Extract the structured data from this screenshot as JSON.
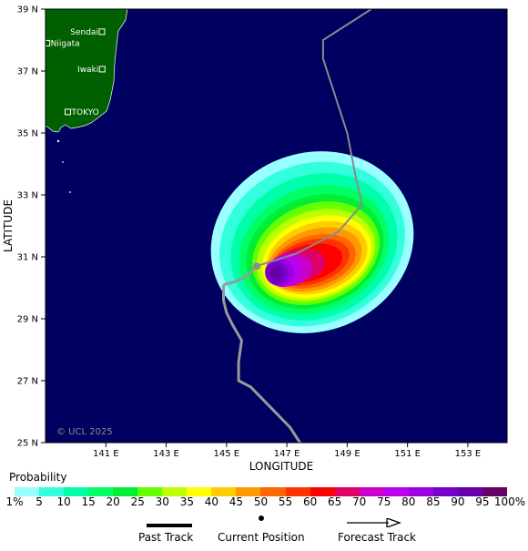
{
  "map": {
    "x_axis_title": "LONGITUDE",
    "y_axis_title": "LATITUDE",
    "lon_ticks": [
      "141 E",
      "143 E",
      "145 E",
      "147 E",
      "149 E",
      "151 E",
      "153 E"
    ],
    "lat_ticks": [
      "39 N",
      "37 N",
      "35 N",
      "33 N",
      "31 N",
      "29 N",
      "27 N",
      "25 N"
    ],
    "lon_range": [
      139,
      154.3
    ],
    "lat_range": [
      25,
      39
    ],
    "ocean_color": "#000060",
    "land_color": "#006000",
    "cities": [
      {
        "name": "Sendai",
        "lon": 140.87,
        "lat": 38.27
      },
      {
        "name": "Niigata",
        "lon": 139.05,
        "lat": 37.9
      },
      {
        "name": "Iwaki",
        "lon": 140.88,
        "lat": 37.06
      },
      {
        "name": "TOKYO",
        "lon": 139.74,
        "lat": 35.68
      }
    ],
    "copyright": "© UCL 2025"
  },
  "track": {
    "past": [
      [
        147.5,
        24.9
      ],
      [
        147.1,
        25.5
      ],
      [
        146.5,
        26.1
      ],
      [
        145.8,
        26.8
      ],
      [
        145.4,
        27.0
      ],
      [
        145.4,
        27.6
      ],
      [
        145.5,
        28.3
      ],
      [
        145.2,
        28.8
      ],
      [
        145.0,
        29.2
      ],
      [
        144.9,
        29.6
      ],
      [
        144.9,
        30.1
      ]
    ],
    "bend": [
      [
        144.9,
        30.1
      ],
      [
        145.3,
        30.2
      ],
      [
        145.7,
        30.4
      ],
      [
        146.0,
        30.7
      ]
    ],
    "current_position": [
      146.0,
      30.7
    ],
    "forecast": [
      [
        146.0,
        30.7
      ],
      [
        147.3,
        31.1
      ],
      [
        148.7,
        31.8
      ],
      [
        149.5,
        32.7
      ],
      [
        149.3,
        33.5
      ],
      [
        149.0,
        35.0
      ],
      [
        148.2,
        37.4
      ],
      [
        148.2,
        38.0
      ],
      [
        149.8,
        39.0
      ]
    ],
    "colors": {
      "past": "#9a9a9a",
      "forecast": "#8a8a8a",
      "current": "#8c8c8c"
    }
  },
  "strike_probability": {
    "title": "Probability",
    "labels": [
      "1%",
      "5",
      "10",
      "15",
      "20",
      "25",
      "30",
      "35",
      "40",
      "45",
      "50",
      "55",
      "60",
      "65",
      "70",
      "75",
      "80",
      "85",
      "90",
      "95",
      "100%"
    ],
    "colors": [
      "#99ffff",
      "#33ffdd",
      "#00ffaa",
      "#00ff66",
      "#00ee33",
      "#66ff00",
      "#bbff00",
      "#ffff00",
      "#ffcc00",
      "#ff9900",
      "#ff6600",
      "#ff3300",
      "#ff0000",
      "#dd0066",
      "#cc00cc",
      "#bb00ee",
      "#9900dd",
      "#7700cc",
      "#6600aa",
      "#660066"
    ]
  },
  "legend": {
    "past_track": "Past Track",
    "current_position": "Current Position",
    "forecast_track": "Forecast Track"
  }
}
